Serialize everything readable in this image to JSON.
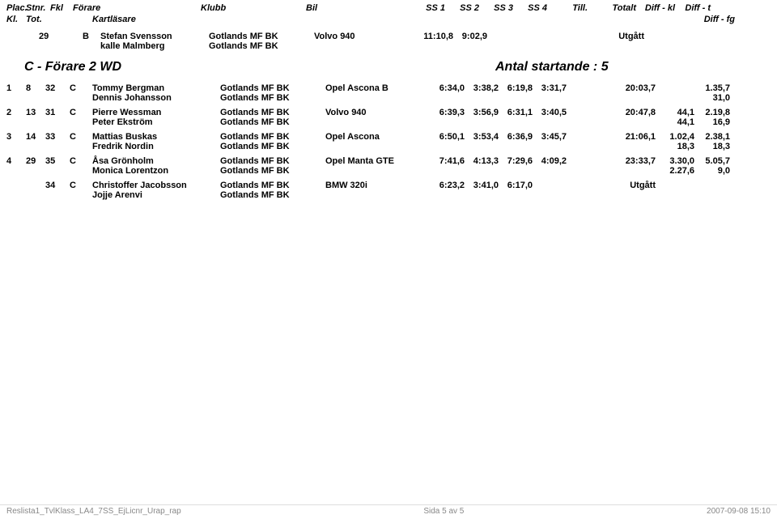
{
  "header": {
    "plac": "Plac.",
    "stnr": "Stnr.",
    "fkl": "Fkl",
    "forare": "Förare",
    "klubb": "Klubb",
    "bil": "Bil",
    "ss1": "SS 1",
    "ss2": "SS 2",
    "ss3": "SS 3",
    "ss4": "SS 4",
    "till": "Till.",
    "totalt": "Totalt",
    "diffkl": "Diff - kl",
    "difft": "Diff - t",
    "kl": "Kl.",
    "tot": "Tot.",
    "kartlasare": "Kartläsare",
    "difffg": "Diff - fg"
  },
  "topEntry": {
    "tot": "29",
    "fkl": "B",
    "driver": "Stefan Svensson",
    "coDriver": "kalle Malmberg",
    "klubb1": "Gotlands MF BK",
    "klubb2": "Gotlands MF BK",
    "bil": "Volvo 940",
    "ss1": "11:10,8",
    "ss2": "9:02,9",
    "totalt": "Utgått"
  },
  "section": {
    "title": "C - Förare 2 WD",
    "subtitle": "Antal startande : 5"
  },
  "rows": [
    {
      "plac": "1",
      "tot": "8",
      "stnr": "32",
      "fkl": "C",
      "driver": "Tommy Bergman",
      "coDriver": "Dennis Johansson",
      "klubb1": "Gotlands MF BK",
      "klubb2": "Gotlands MF BK",
      "bil": "Opel Ascona B",
      "ss1": "6:34,0",
      "ss2": "3:38,2",
      "ss3": "6:19,8",
      "ss4": "3:31,7",
      "totalt": "20:03,7",
      "diffkl1": "",
      "difft1": "1.35,7",
      "diffkl2": "",
      "difft2": "31,0"
    },
    {
      "plac": "2",
      "tot": "13",
      "stnr": "31",
      "fkl": "C",
      "driver": "Pierre Wessman",
      "coDriver": "Peter Ekström",
      "klubb1": "Gotlands MF BK",
      "klubb2": "Gotlands MF BK",
      "bil": "Volvo 940",
      "ss1": "6:39,3",
      "ss2": "3:56,9",
      "ss3": "6:31,1",
      "ss4": "3:40,5",
      "totalt": "20:47,8",
      "diffkl1": "44,1",
      "difft1": "2.19,8",
      "diffkl2": "44,1",
      "difft2": "16,9"
    },
    {
      "plac": "3",
      "tot": "14",
      "stnr": "33",
      "fkl": "C",
      "driver": "Mattias Buskas",
      "coDriver": "Fredrik Nordin",
      "klubb1": "Gotlands MF BK",
      "klubb2": "Gotlands MF BK",
      "bil": "Opel Ascona",
      "ss1": "6:50,1",
      "ss2": "3:53,4",
      "ss3": "6:36,9",
      "ss4": "3:45,7",
      "totalt": "21:06,1",
      "diffkl1": "1.02,4",
      "difft1": "2.38,1",
      "diffkl2": "18,3",
      "difft2": "18,3"
    },
    {
      "plac": "4",
      "tot": "29",
      "stnr": "35",
      "fkl": "C",
      "driver": "Åsa Grönholm",
      "coDriver": "Monica Lorentzon",
      "klubb1": "Gotlands MF BK",
      "klubb2": "Gotlands MF BK",
      "bil": "Opel Manta GTE",
      "ss1": "7:41,6",
      "ss2": "4:13,3",
      "ss3": "7:29,6",
      "ss4": "4:09,2",
      "totalt": "23:33,7",
      "diffkl1": "3.30,0",
      "difft1": "5.05,7",
      "diffkl2": "2.27,6",
      "difft2": "9,0"
    },
    {
      "plac": "",
      "tot": "",
      "stnr": "34",
      "fkl": "C",
      "driver": "Christoffer Jacobsson",
      "coDriver": "Jojje Arenvi",
      "klubb1": "Gotlands MF BK",
      "klubb2": "Gotlands MF BK",
      "bil": "BMW 320i",
      "ss1": "6:23,2",
      "ss2": "3:41,0",
      "ss3": "6:17,0",
      "ss4": "",
      "totalt": "Utgått",
      "diffkl1": "",
      "difft1": "",
      "diffkl2": "",
      "difft2": ""
    }
  ],
  "footer": {
    "left": "Reslista1_TvlKlass_LA4_7SS_EjLicnr_Urap_rap",
    "center": "Sida 5 av 5",
    "right": "2007-09-08 15:10"
  }
}
